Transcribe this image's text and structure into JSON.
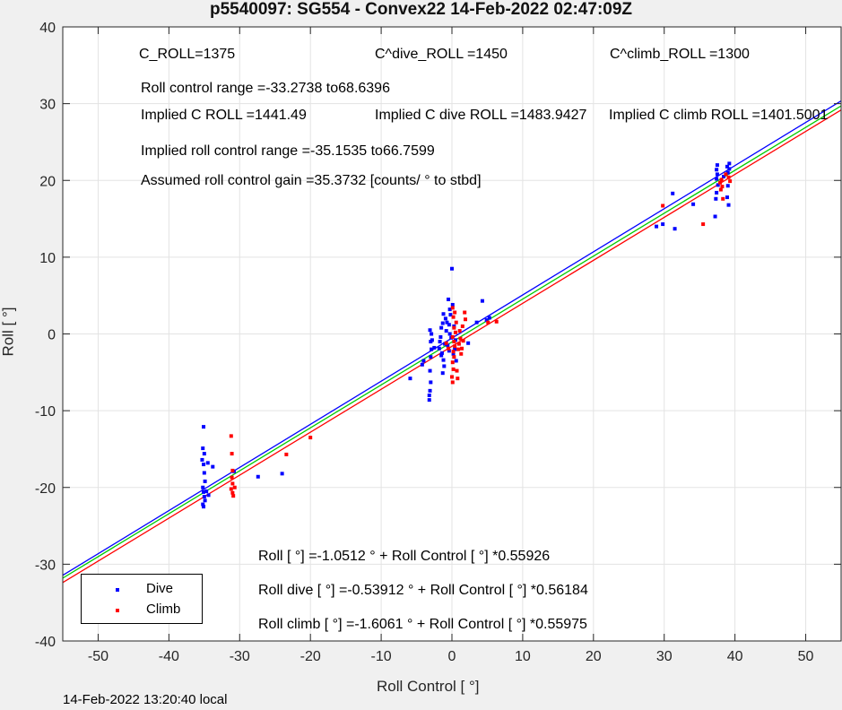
{
  "title": "p5540097: SG554 - Convex22 14-Feb-2022 02:47:09Z",
  "footer": "14-Feb-2022 13:20:40 local",
  "annotations": {
    "c_roll": "C_ROLL=1375",
    "c_roll_dive": "C^dive_ROLL =1450",
    "c_roll_climb": "C^climb_ROLL =1300",
    "roll_control_range": "Roll control range =-33.2738 to68.6396",
    "implied_c_roll": "Implied C ROLL =1441.49",
    "implied_c_roll_dive": "Implied C dive ROLL =1483.9427",
    "implied_c_roll_climb": "Implied C climb ROLL =1401.5001",
    "implied_range": "Implied roll control range =-35.1535 to66.7599",
    "gain": "Assumed roll control gain =35.3732 [counts/ ° to stbd]",
    "eq_all": "Roll [ °] =-1.0512 ° + Roll Control [ °] *0.55926",
    "eq_dive": "Roll dive [ °] =-0.53912 ° + Roll Control [ °] *0.56184",
    "eq_climb": "Roll climb [ °] =-1.6061 ° + Roll Control [ °] *0.55975"
  },
  "legend": {
    "dive": "Dive",
    "climb": "Climb"
  },
  "chart_data": {
    "type": "scatter",
    "title": "p5540097: SG554 - Convex22 14-Feb-2022 02:47:09Z",
    "xlabel": "Roll Control [ °]",
    "ylabel": "Roll [ °]",
    "xlim": [
      -55,
      55
    ],
    "ylim": [
      -40,
      40
    ],
    "xticks": [
      -50,
      -40,
      -30,
      -20,
      -10,
      0,
      10,
      20,
      30,
      40,
      50
    ],
    "yticks": [
      -40,
      -30,
      -20,
      -10,
      0,
      10,
      20,
      30,
      40
    ],
    "grid": true,
    "legend_position": "bottom-left",
    "series": [
      {
        "name": "Dive",
        "color": "#0000ff",
        "points": [
          [
            -35.1,
            -12.1
          ],
          [
            -35.2,
            -14.9
          ],
          [
            -35.0,
            -15.6
          ],
          [
            -35.3,
            -16.4
          ],
          [
            -35.1,
            -17.0
          ],
          [
            -34.5,
            -16.8
          ],
          [
            -33.8,
            -17.3
          ],
          [
            -35.0,
            -18.1
          ],
          [
            -34.9,
            -19.2
          ],
          [
            -35.2,
            -20.0
          ],
          [
            -35.1,
            -20.6
          ],
          [
            -35.0,
            -21.2
          ],
          [
            -34.9,
            -21.7
          ],
          [
            -35.2,
            -22.2
          ],
          [
            -35.1,
            -22.5
          ],
          [
            -34.7,
            -20.5
          ],
          [
            -34.4,
            -21.0
          ],
          [
            -27.4,
            -18.6
          ],
          [
            -24.0,
            -18.2
          ],
          [
            -30.8,
            -17.9
          ],
          [
            -5.9,
            -5.8
          ],
          [
            -4.2,
            -4.0
          ],
          [
            -4.0,
            -3.5
          ],
          [
            -3.2,
            -8.0
          ],
          [
            -3.2,
            -8.6
          ],
          [
            -3.1,
            -7.4
          ],
          [
            -3.0,
            -6.3
          ],
          [
            -3.1,
            -4.8
          ],
          [
            -3.0,
            -3.0
          ],
          [
            -2.9,
            -2.0
          ],
          [
            -3.0,
            -1.0
          ],
          [
            -2.9,
            0.0
          ],
          [
            -3.1,
            0.5
          ],
          [
            -2.8,
            -0.8
          ],
          [
            -2.5,
            -1.8
          ],
          [
            -1.5,
            0.8
          ],
          [
            -1.3,
            1.4
          ],
          [
            -1.2,
            2.6
          ],
          [
            -1.4,
            -2.5
          ],
          [
            -1.2,
            -3.4
          ],
          [
            -1.3,
            -5.1
          ],
          [
            -1.1,
            -4.2
          ],
          [
            -1.0,
            -1.3
          ],
          [
            -0.8,
            0.4
          ],
          [
            -0.7,
            1.5
          ],
          [
            -0.9,
            2.0
          ],
          [
            -1.6,
            -0.4
          ],
          [
            -1.7,
            -1.0
          ],
          [
            -1.8,
            -1.9
          ],
          [
            -1.5,
            -2.8
          ],
          [
            -0.5,
            4.5
          ],
          [
            -0.3,
            3.2
          ],
          [
            -0.2,
            2.5
          ],
          [
            -0.4,
            1.2
          ],
          [
            0.0,
            8.5
          ],
          [
            -0.3,
            0.0
          ],
          [
            -0.1,
            -0.5
          ],
          [
            -0.6,
            -1.5
          ],
          [
            -0.4,
            -2.2
          ],
          [
            0.1,
            3.8
          ],
          [
            0.3,
            1.0
          ],
          [
            0.5,
            -0.8
          ],
          [
            0.4,
            -2.0
          ],
          [
            0.2,
            -2.6
          ],
          [
            0.6,
            -3.5
          ],
          [
            4.3,
            4.3
          ],
          [
            3.5,
            1.5
          ],
          [
            4.9,
            1.8
          ],
          [
            5.3,
            2.1
          ],
          [
            2.3,
            -1.2
          ],
          [
            28.9,
            14.0
          ],
          [
            29.8,
            14.3
          ],
          [
            31.2,
            18.3
          ],
          [
            31.5,
            13.7
          ],
          [
            34.1,
            16.9
          ],
          [
            37.2,
            15.3
          ],
          [
            37.4,
            18.4
          ],
          [
            37.3,
            17.6
          ],
          [
            37.4,
            20.2
          ],
          [
            37.5,
            20.8
          ],
          [
            37.4,
            21.4
          ],
          [
            37.6,
            19.4
          ],
          [
            37.5,
            22.0
          ],
          [
            39.0,
            21.0
          ],
          [
            39.2,
            22.2
          ],
          [
            38.9,
            21.8
          ],
          [
            39.0,
            19.3
          ],
          [
            38.9,
            17.8
          ],
          [
            39.1,
            16.8
          ],
          [
            39.2,
            21.5
          ],
          [
            38.4,
            20.5
          ]
        ]
      },
      {
        "name": "Climb",
        "color": "#ff0000",
        "points": [
          [
            -31.2,
            -13.3
          ],
          [
            -31.1,
            -15.6
          ],
          [
            -31.0,
            -17.8
          ],
          [
            -31.1,
            -18.7
          ],
          [
            -31.0,
            -19.5
          ],
          [
            -31.2,
            -20.2
          ],
          [
            -31.0,
            -20.7
          ],
          [
            -30.9,
            -21.1
          ],
          [
            -30.7,
            -20.0
          ],
          [
            -23.4,
            -15.7
          ],
          [
            -20.0,
            -13.5
          ],
          [
            0.1,
            -6.3
          ],
          [
            0.0,
            -5.6
          ],
          [
            0.2,
            -4.6
          ],
          [
            0.1,
            -3.7
          ],
          [
            0.3,
            -3.0
          ],
          [
            0.2,
            -2.3
          ],
          [
            0.4,
            -1.6
          ],
          [
            0.3,
            -1.0
          ],
          [
            0.1,
            -0.4
          ],
          [
            0.5,
            0.2
          ],
          [
            0.3,
            0.8
          ],
          [
            0.6,
            1.5
          ],
          [
            0.2,
            2.2
          ],
          [
            0.4,
            2.8
          ],
          [
            0.1,
            3.4
          ],
          [
            0.8,
            -5.8
          ],
          [
            0.7,
            -4.8
          ],
          [
            0.9,
            -2.0
          ],
          [
            1.0,
            -1.3
          ],
          [
            1.2,
            -0.6
          ],
          [
            1.1,
            0.4
          ],
          [
            1.5,
            1.0
          ],
          [
            1.4,
            -1.9
          ],
          [
            1.6,
            -0.9
          ],
          [
            1.9,
            1.9
          ],
          [
            1.8,
            2.8
          ],
          [
            1.3,
            -2.6
          ],
          [
            6.3,
            1.6
          ],
          [
            5.1,
            1.5
          ],
          [
            -0.5,
            -1.9
          ],
          [
            -0.8,
            -1.2
          ],
          [
            29.8,
            16.7
          ],
          [
            35.5,
            14.3
          ],
          [
            38.0,
            18.8
          ],
          [
            38.2,
            19.2
          ],
          [
            38.1,
            20.1
          ],
          [
            37.9,
            19.7
          ],
          [
            38.3,
            17.6
          ],
          [
            39.1,
            20.4
          ],
          [
            39.3,
            19.9
          ],
          [
            38.7,
            20.8
          ]
        ]
      }
    ],
    "fit_lines": [
      {
        "label": "dive",
        "color": "#0000ff",
        "intercept": -0.53912,
        "slope": 0.56184
      },
      {
        "label": "all",
        "color": "#00cc00",
        "intercept": -1.0512,
        "slope": 0.55926
      },
      {
        "label": "climb",
        "color": "#ff0000",
        "intercept": -1.6061,
        "slope": 0.55975
      }
    ]
  }
}
